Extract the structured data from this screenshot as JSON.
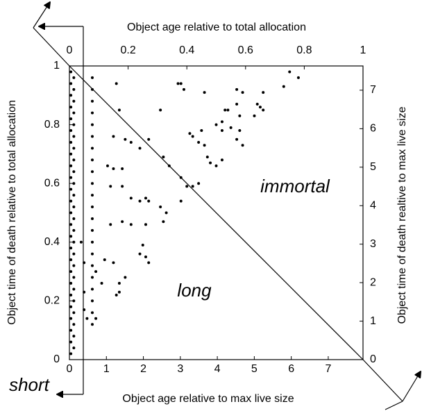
{
  "chart_data": {
    "type": "scatter",
    "x2_label": "Object age relative to total allocation",
    "x_label": "Object age relative to max live size",
    "y_label": "Object time of death relative to total allocation",
    "y2_label": "Object time of death realtive to max live size",
    "annotations": [
      "immortal",
      "long",
      "short"
    ],
    "color": "#000000",
    "xlim": [
      0,
      7.94
    ],
    "xticks": [
      0,
      1,
      2,
      3,
      4,
      5,
      6,
      7
    ],
    "x2lim": [
      0,
      1
    ],
    "x2ticks": [
      0,
      0.2,
      0.4,
      0.6,
      0.8,
      1
    ],
    "ylim": [
      0,
      1
    ],
    "yticks": [
      0,
      0.2,
      0.4,
      0.6,
      0.8,
      1
    ],
    "y2lim": [
      0,
      7.63
    ],
    "y2ticks": [
      0,
      1,
      2,
      3,
      4,
      5,
      6,
      7
    ],
    "x": [
      0.16,
      0.37,
      0.38,
      0.39,
      0.46,
      0.57,
      0.59,
      0.66,
      0.73,
      0.75,
      0.78,
      0.17,
      0.31,
      0.53,
      0.54,
      0.57,
      0.58,
      0.64,
      0.65,
      0.66,
      0.63,
      0.41,
      0.42,
      0.44,
      0.46,
      0.45,
      0.5,
      0.52,
      0.55,
      0.52,
      0.59,
      0.57,
      0.58,
      0.15,
      0.19,
      0.21,
      0.27,
      0.13,
      0.15,
      0.18,
      0.24,
      0.32,
      0.34,
      0.38,
      0.4,
      0.42,
      0.47,
      0.48,
      0.5,
      0.52,
      0.14,
      0.18,
      0.21,
      0.24,
      0.26,
      0.27,
      0.14,
      0.18,
      0.21,
      0.26,
      0.32,
      0.33,
      0.31,
      0.38,
      0.44,
      0.12,
      0.15,
      0.24,
      0.25,
      0.26,
      0.27,
      0.09,
      0.11,
      0.17,
      0.17,
      0.19,
      0.16,
      0.05,
      0.05,
      0.06,
      0.09,
      0.05,
      0.04,
      0.005,
      0.005,
      0.005,
      0.005,
      0.005,
      0.005,
      0.005,
      0.005,
      0.005,
      0.005,
      0.005,
      0.005,
      0.005,
      0.005,
      0.005,
      0.005,
      0.005,
      0.005,
      0.005,
      0.005,
      0.005,
      0.005,
      0.005,
      0.005,
      0.005,
      0.015,
      0.015,
      0.015,
      0.015,
      0.015,
      0.015,
      0.015,
      0.015,
      0.015,
      0.015,
      0.015,
      0.015,
      0.015,
      0.015,
      0.015,
      0.015,
      0.015,
      0.015,
      0.015,
      0.015,
      0.015,
      0.015,
      0.015,
      0.015,
      0.078,
      0.078,
      0.078,
      0.078,
      0.078,
      0.078,
      0.078,
      0.078,
      0.078,
      0.078,
      0.078,
      0.078,
      0.078,
      0.078,
      0.078,
      0.078,
      0.078,
      0.078,
      0.078,
      0.078,
      0.078,
      0.078
    ],
    "values": [
      0.94,
      0.94,
      0.94,
      0.92,
      0.91,
      0.92,
      0.91,
      0.91,
      0.93,
      0.98,
      0.96,
      0.85,
      0.85,
      0.85,
      0.85,
      0.87,
      0.83,
      0.87,
      0.86,
      0.85,
      0.83,
      0.77,
      0.76,
      0.74,
      0.73,
      0.78,
      0.8,
      0.78,
      0.79,
      0.81,
      0.73,
      0.75,
      0.78,
      0.76,
      0.75,
      0.74,
      0.75,
      0.66,
      0.65,
      0.65,
      0.72,
      0.69,
      0.66,
      0.62,
      0.59,
      0.59,
      0.69,
      0.67,
      0.66,
      0.68,
      0.59,
      0.59,
      0.55,
      0.54,
      0.55,
      0.54,
      0.46,
      0.47,
      0.46,
      0.46,
      0.47,
      0.5,
      0.52,
      0.54,
      0.6,
      0.34,
      0.33,
      0.36,
      0.39,
      0.35,
      0.33,
      0.3,
      0.26,
      0.26,
      0.23,
      0.28,
      0.22,
      0.23,
      0.17,
      0.14,
      0.14,
      0.33,
      0.4,
      0.02,
      0.06,
      0.1,
      0.14,
      0.18,
      0.22,
      0.26,
      0.3,
      0.34,
      0.38,
      0.42,
      0.46,
      0.5,
      0.54,
      0.58,
      0.62,
      0.66,
      0.7,
      0.74,
      0.78,
      0.82,
      0.86,
      0.9,
      0.94,
      0.98,
      0.04,
      0.08,
      0.12,
      0.16,
      0.2,
      0.24,
      0.28,
      0.32,
      0.36,
      0.4,
      0.44,
      0.48,
      0.52,
      0.56,
      0.6,
      0.64,
      0.68,
      0.72,
      0.76,
      0.8,
      0.84,
      0.88,
      0.92,
      0.96,
      0.12,
      0.16,
      0.2,
      0.24,
      0.28,
      0.32,
      0.36,
      0.4,
      0.44,
      0.48,
      0.52,
      0.56,
      0.6,
      0.64,
      0.68,
      0.72,
      0.76,
      0.8,
      0.84,
      0.88,
      0.92,
      0.96
    ]
  }
}
